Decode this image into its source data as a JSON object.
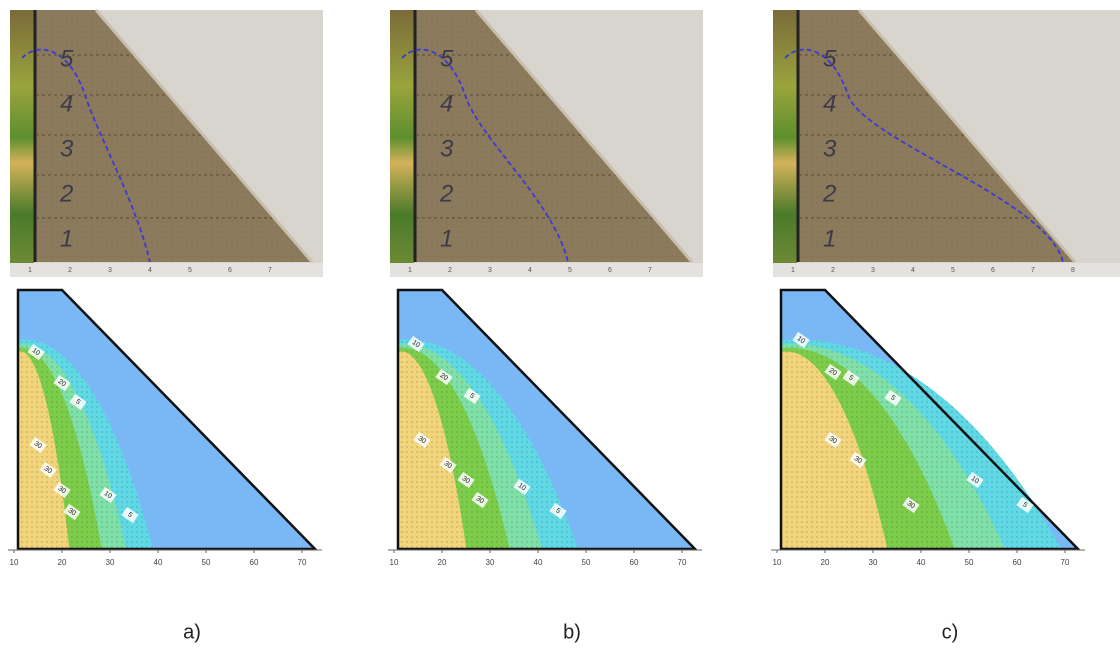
{
  "panels": [
    {
      "caption": "a)",
      "photo": {
        "stage_labels": [
          "1",
          "2",
          "3",
          "4",
          "5"
        ],
        "ruler_labels": [
          "1",
          "2",
          "3",
          "4",
          "5",
          "6",
          "7"
        ]
      },
      "plot": {
        "xticks": [
          10,
          20,
          30,
          40,
          50,
          60,
          70
        ],
        "contour_labels": [
          "10",
          "20",
          "5",
          "30",
          "30",
          "30",
          "30",
          "10",
          "5"
        ]
      }
    },
    {
      "caption": "b)",
      "photo": {
        "stage_labels": [
          "1",
          "2",
          "3",
          "4",
          "5"
        ],
        "ruler_labels": [
          "1",
          "2",
          "3",
          "4",
          "5",
          "6",
          "7"
        ]
      },
      "plot": {
        "xticks": [
          10,
          20,
          30,
          40,
          50,
          60,
          70
        ],
        "contour_labels": [
          "10",
          "20",
          "5",
          "30",
          "30",
          "30",
          "30",
          "10",
          "5"
        ]
      }
    },
    {
      "caption": "c)",
      "photo": {
        "stage_labels": [
          "1",
          "2",
          "3",
          "4",
          "5"
        ],
        "ruler_labels": [
          "1",
          "2",
          "3",
          "4",
          "5",
          "6",
          "7",
          "8"
        ]
      },
      "plot": {
        "xticks": [
          10,
          20,
          30,
          40,
          50,
          60,
          70
        ],
        "contour_labels": [
          "10",
          "20",
          "5",
          "5",
          "30",
          "30",
          "30",
          "10",
          "5"
        ]
      }
    }
  ]
}
